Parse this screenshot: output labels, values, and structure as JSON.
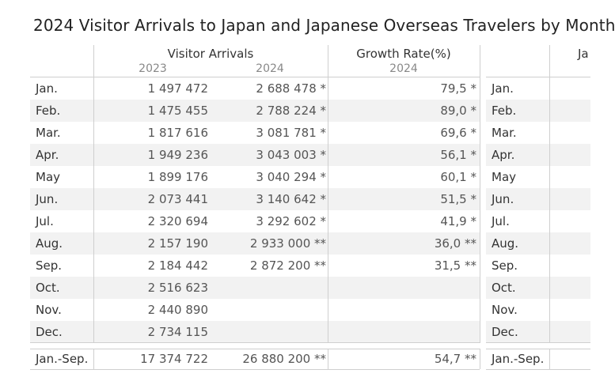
{
  "title": "2024 Visitor Arrivals to Japan and Japanese Overseas Travelers by Month",
  "headers": {
    "visitor_arrivals": "Visitor Arrivals",
    "growth_rate": "Growth Rate(%)",
    "right_block": "Ja",
    "year_2023": "2023",
    "year_2024": "2024"
  },
  "chart_data": {
    "type": "table",
    "columns": [
      "Visitor Arrivals 2023",
      "Visitor Arrivals 2024",
      "Growth Rate(%) 2024"
    ],
    "rows": [
      {
        "month": "Jan.",
        "arrivals_2023": "1 497 472",
        "arrivals_2024": "2 688 478 *",
        "growth_2024": "79,5 *"
      },
      {
        "month": "Feb.",
        "arrivals_2023": "1 475 455",
        "arrivals_2024": "2 788 224 *",
        "growth_2024": "89,0 *"
      },
      {
        "month": "Mar.",
        "arrivals_2023": "1 817 616",
        "arrivals_2024": "3 081 781 *",
        "growth_2024": "69,6 *"
      },
      {
        "month": "Apr.",
        "arrivals_2023": "1 949 236",
        "arrivals_2024": "3 043 003 *",
        "growth_2024": "56,1 *"
      },
      {
        "month": "May",
        "arrivals_2023": "1 899 176",
        "arrivals_2024": "3 040 294 *",
        "growth_2024": "60,1 *"
      },
      {
        "month": "Jun.",
        "arrivals_2023": "2 073 441",
        "arrivals_2024": "3 140 642 *",
        "growth_2024": "51,5 *"
      },
      {
        "month": "Jul.",
        "arrivals_2023": "2 320 694",
        "arrivals_2024": "3 292 602 *",
        "growth_2024": "41,9 *"
      },
      {
        "month": "Aug.",
        "arrivals_2023": "2 157 190",
        "arrivals_2024": "2 933 000 **",
        "growth_2024": "36,0 **"
      },
      {
        "month": "Sep.",
        "arrivals_2023": "2 184 442",
        "arrivals_2024": "2 872 200 **",
        "growth_2024": "31,5 **"
      },
      {
        "month": "Oct.",
        "arrivals_2023": "2 516 623",
        "arrivals_2024": "",
        "growth_2024": ""
      },
      {
        "month": "Nov.",
        "arrivals_2023": "2 440 890",
        "arrivals_2024": "",
        "growth_2024": ""
      },
      {
        "month": "Dec.",
        "arrivals_2023": "2 734 115",
        "arrivals_2024": "",
        "growth_2024": ""
      }
    ],
    "total": {
      "month": "Jan.-Sep.",
      "arrivals_2023": "17 374 722",
      "arrivals_2024": "26 880 200 **",
      "growth_2024": "54,7 **"
    }
  }
}
